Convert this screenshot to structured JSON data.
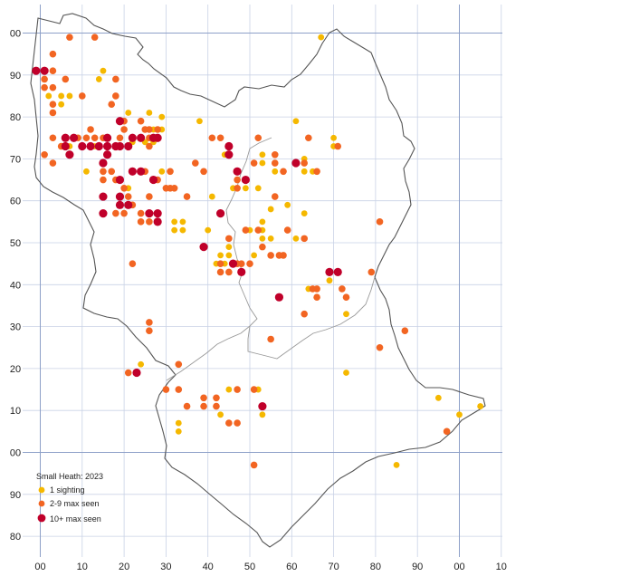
{
  "map": {
    "grid_labels_x": [
      "00",
      "10",
      "20",
      "30",
      "40",
      "50",
      "60",
      "70",
      "80",
      "90",
      "00",
      "10"
    ],
    "grid_labels_y": [
      "00",
      "90",
      "80",
      "70",
      "60",
      "50",
      "40",
      "30",
      "20",
      "10",
      "00",
      "90",
      "80"
    ],
    "colors": {
      "one": "#f5b800",
      "few": "#f26522",
      "many": "#c0002a",
      "major_grid": "#8da0c8",
      "minor_grid": "#c9d2e6",
      "boundary": "#555555",
      "sub_boundary": "#999999"
    }
  },
  "legend": {
    "title": "Small Heath:  2023",
    "items": [
      {
        "key": "one",
        "label": "1 sighting"
      },
      {
        "key": "few",
        "label": "2-9 max seen"
      },
      {
        "key": "many",
        "label": "10+ max seen"
      }
    ]
  },
  "records": {
    "one": [
      [
        67,
        99
      ],
      [
        15,
        91
      ],
      [
        14,
        89
      ],
      [
        2,
        85
      ],
      [
        5,
        85
      ],
      [
        7,
        85
      ],
      [
        5,
        83
      ],
      [
        21,
        81
      ],
      [
        26,
        81
      ],
      [
        29,
        80
      ],
      [
        61,
        79
      ],
      [
        38,
        79
      ],
      [
        70,
        75
      ],
      [
        70,
        73
      ],
      [
        27,
        77
      ],
      [
        29,
        77
      ],
      [
        22,
        74
      ],
      [
        25,
        74
      ],
      [
        27,
        74
      ],
      [
        16,
        73
      ],
      [
        21,
        73
      ],
      [
        13,
        73
      ],
      [
        10,
        73
      ],
      [
        7,
        73
      ],
      [
        44,
        71
      ],
      [
        45,
        71
      ],
      [
        53,
        71
      ],
      [
        63,
        70
      ],
      [
        53,
        69
      ],
      [
        56,
        67
      ],
      [
        63,
        67
      ],
      [
        65,
        67
      ],
      [
        11,
        67
      ],
      [
        29,
        67
      ],
      [
        41,
        61
      ],
      [
        46,
        63
      ],
      [
        49,
        63
      ],
      [
        52,
        63
      ],
      [
        21,
        63
      ],
      [
        59,
        59
      ],
      [
        55,
        58
      ],
      [
        32,
        55
      ],
      [
        34,
        55
      ],
      [
        32,
        53
      ],
      [
        34,
        53
      ],
      [
        53,
        55
      ],
      [
        50,
        53
      ],
      [
        53,
        53
      ],
      [
        53,
        51
      ],
      [
        55,
        51
      ],
      [
        61,
        51
      ],
      [
        63,
        57
      ],
      [
        40,
        53
      ],
      [
        45,
        49
      ],
      [
        43,
        47
      ],
      [
        42,
        45
      ],
      [
        44,
        45
      ],
      [
        45,
        47
      ],
      [
        51,
        47
      ],
      [
        64,
        39
      ],
      [
        69,
        41
      ],
      [
        73,
        33
      ],
      [
        73,
        19
      ],
      [
        24,
        21
      ],
      [
        45,
        15
      ],
      [
        52,
        15
      ],
      [
        33,
        7
      ],
      [
        33,
        5
      ],
      [
        43,
        9
      ],
      [
        53,
        9
      ],
      [
        95,
        13
      ],
      [
        100,
        9
      ],
      [
        105,
        11
      ],
      [
        85,
        -3
      ]
    ],
    "few": [
      [
        13,
        99
      ],
      [
        7,
        99
      ],
      [
        3,
        95
      ],
      [
        3,
        91
      ],
      [
        3,
        87
      ],
      [
        3,
        83
      ],
      [
        3,
        81
      ],
      [
        1,
        89
      ],
      [
        1,
        87
      ],
      [
        6,
        89
      ],
      [
        10,
        85
      ],
      [
        18,
        89
      ],
      [
        18,
        85
      ],
      [
        17,
        83
      ],
      [
        20,
        79
      ],
      [
        24,
        79
      ],
      [
        25,
        77
      ],
      [
        28,
        77
      ],
      [
        9,
        75
      ],
      [
        11,
        75
      ],
      [
        12,
        77
      ],
      [
        13,
        75
      ],
      [
        15,
        75
      ],
      [
        3,
        75
      ],
      [
        16,
        75
      ],
      [
        19,
        75
      ],
      [
        20,
        77
      ],
      [
        26,
        75
      ],
      [
        28,
        75
      ],
      [
        5,
        73
      ],
      [
        1,
        71
      ],
      [
        3,
        69
      ],
      [
        17,
        67
      ],
      [
        18,
        65
      ],
      [
        15,
        65
      ],
      [
        20,
        63
      ],
      [
        21,
        61
      ],
      [
        22,
        59
      ],
      [
        24,
        57
      ],
      [
        24,
        55
      ],
      [
        26,
        55
      ],
      [
        28,
        55
      ],
      [
        18,
        57
      ],
      [
        20,
        57
      ],
      [
        15,
        67
      ],
      [
        25,
        67
      ],
      [
        31,
        67
      ],
      [
        30,
        63
      ],
      [
        32,
        63
      ],
      [
        35,
        61
      ],
      [
        41,
        75
      ],
      [
        43,
        75
      ],
      [
        45,
        71
      ],
      [
        37,
        69
      ],
      [
        39,
        67
      ],
      [
        47,
        65
      ],
      [
        47,
        63
      ],
      [
        52,
        75
      ],
      [
        56,
        71
      ],
      [
        58,
        67
      ],
      [
        51,
        69
      ],
      [
        56,
        69
      ],
      [
        56,
        61
      ],
      [
        64,
        75
      ],
      [
        66,
        67
      ],
      [
        71,
        73
      ],
      [
        63,
        69
      ],
      [
        52,
        53
      ],
      [
        55,
        47
      ],
      [
        57,
        47
      ],
      [
        53,
        49
      ],
      [
        58,
        47
      ],
      [
        63,
        51
      ],
      [
        59,
        53
      ],
      [
        45,
        51
      ],
      [
        47,
        45
      ],
      [
        43,
        45
      ],
      [
        48,
        45
      ],
      [
        43,
        43
      ],
      [
        45,
        43
      ],
      [
        50,
        45
      ],
      [
        49,
        53
      ],
      [
        26,
        31
      ],
      [
        26,
        29
      ],
      [
        22,
        45
      ],
      [
        26,
        61
      ],
      [
        21,
        19
      ],
      [
        81,
        55
      ],
      [
        79,
        43
      ],
      [
        66,
        39
      ],
      [
        72,
        39
      ],
      [
        73,
        37
      ],
      [
        66,
        37
      ],
      [
        65,
        39
      ],
      [
        63,
        33
      ],
      [
        55,
        27
      ],
      [
        81,
        25
      ],
      [
        87,
        29
      ],
      [
        33,
        21
      ],
      [
        30,
        15
      ],
      [
        33,
        15
      ],
      [
        39,
        13
      ],
      [
        42,
        13
      ],
      [
        39,
        11
      ],
      [
        42,
        11
      ],
      [
        35,
        11
      ],
      [
        47,
        15
      ],
      [
        47,
        7
      ],
      [
        45,
        7
      ],
      [
        51,
        15
      ],
      [
        51,
        -3
      ],
      [
        97,
        5
      ],
      [
        28,
        65
      ],
      [
        26,
        77
      ],
      [
        26,
        73
      ],
      [
        31,
        63
      ]
    ],
    "many": [
      [
        -1,
        91
      ],
      [
        1,
        91
      ],
      [
        6,
        75
      ],
      [
        8,
        75
      ],
      [
        6,
        73
      ],
      [
        7,
        71
      ],
      [
        10,
        73
      ],
      [
        12,
        73
      ],
      [
        14,
        73
      ],
      [
        16,
        73
      ],
      [
        16,
        71
      ],
      [
        18,
        73
      ],
      [
        19,
        73
      ],
      [
        21,
        73
      ],
      [
        16,
        75
      ],
      [
        19,
        79
      ],
      [
        22,
        75
      ],
      [
        24,
        75
      ],
      [
        22,
        67
      ],
      [
        24,
        67
      ],
      [
        27,
        75
      ],
      [
        28,
        75
      ],
      [
        15,
        69
      ],
      [
        19,
        65
      ],
      [
        27,
        65
      ],
      [
        15,
        61
      ],
      [
        19,
        61
      ],
      [
        19,
        59
      ],
      [
        21,
        59
      ],
      [
        15,
        57
      ],
      [
        26,
        57
      ],
      [
        28,
        57
      ],
      [
        28,
        55
      ],
      [
        45,
        73
      ],
      [
        45,
        71
      ],
      [
        47,
        67
      ],
      [
        49,
        65
      ],
      [
        61,
        69
      ],
      [
        43,
        57
      ],
      [
        39,
        49
      ],
      [
        46,
        45
      ],
      [
        48,
        43
      ],
      [
        57,
        37
      ],
      [
        69,
        43
      ],
      [
        71,
        43
      ],
      [
        23,
        19
      ],
      [
        53,
        11
      ]
    ]
  }
}
